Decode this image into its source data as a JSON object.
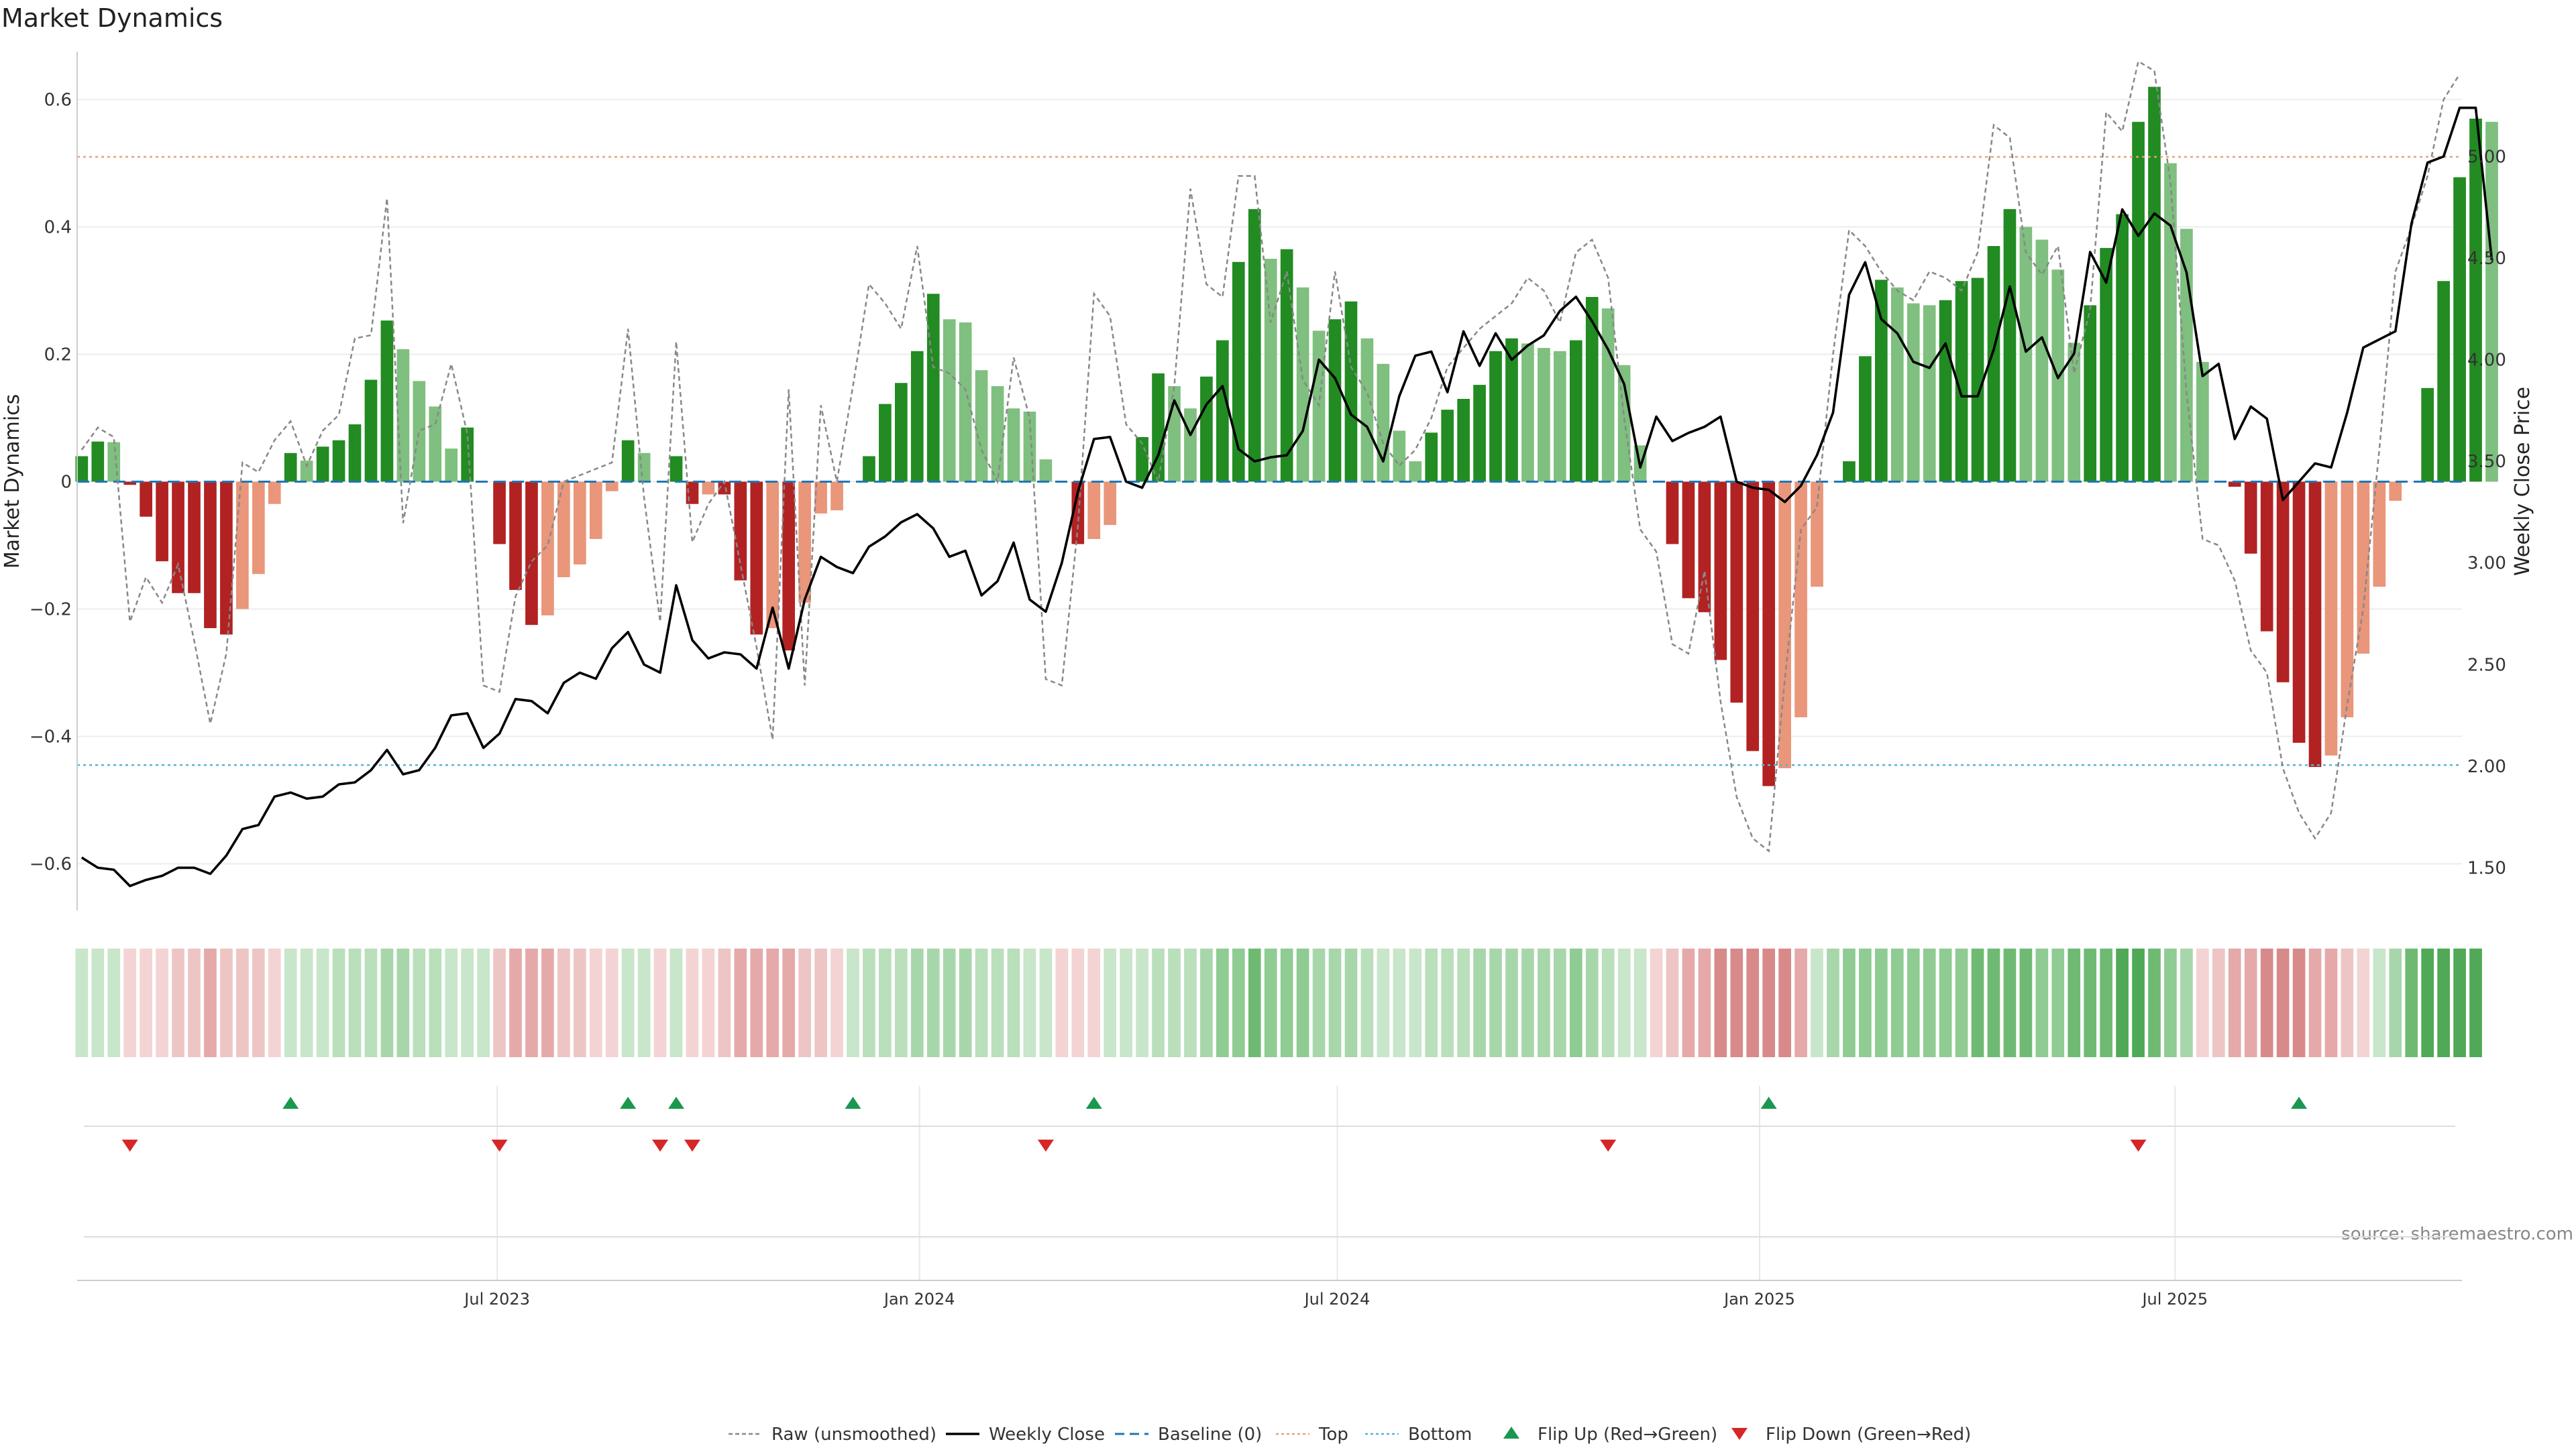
{
  "chart_data": {
    "type": "bar",
    "title": "Market Dynamics",
    "ylabel": "Market Dynamics",
    "y2label": "Weekly Close Price",
    "ylim": [
      -0.67,
      0.67
    ],
    "y2lim": [
      1.3,
      5.5
    ],
    "yticks": [
      -0.6,
      -0.4,
      -0.2,
      0,
      0.2,
      0.4,
      0.6
    ],
    "ytick_labels": [
      "−0.6",
      "−0.4",
      "−0.2",
      "0",
      "0.2",
      "0.4",
      "0.6"
    ],
    "y2ticks": [
      1.5,
      2.0,
      2.5,
      3.0,
      3.5,
      4.0,
      4.5,
      5.0
    ],
    "y2tick_labels": [
      "1.50",
      "2.00",
      "2.50",
      "3.00",
      "3.50",
      "4.00",
      "4.50",
      "5.00"
    ],
    "start_date": "2023-01-01",
    "x_range": [
      "2022-12-30",
      "2025-11-03"
    ],
    "xticks": [
      {
        "date": "2023-07-01",
        "label": "Jul 2023"
      },
      {
        "date": "2024-01-01",
        "label": "Jan 2024"
      },
      {
        "date": "2024-07-01",
        "label": "Jul 2024"
      },
      {
        "date": "2025-01-01",
        "label": "Jan 2025"
      },
      {
        "date": "2025-07-01",
        "label": "Jul 2025"
      }
    ],
    "top_threshold": 0.51,
    "bottom_threshold": -0.445,
    "grid": true,
    "legend_placement": "bottom-center",
    "source": "source: sharemaestro.com",
    "colors": {
      "strong_green": "#228b22",
      "light_green": "#7fbf7f",
      "strong_red": "#b22222",
      "light_red": "#e9967a",
      "close": "#000000",
      "raw": "#888888",
      "baseline": "#1f77b4",
      "top": "#e8a17a",
      "bottom": "#5ab4d6",
      "flip_up": "#1a9850",
      "flip_down": "#d62728"
    },
    "series": [
      {
        "name": "Market Dynamics",
        "values": [
          0.04,
          0.063,
          0.062,
          -0.005,
          -0.055,
          -0.125,
          -0.175,
          -0.175,
          -0.23,
          -0.24,
          -0.2,
          -0.145,
          -0.035,
          0.045,
          0.033,
          0.055,
          0.065,
          0.09,
          0.16,
          0.253,
          0.208,
          0.158,
          0.118,
          0.052,
          0.085,
          0,
          -0.098,
          -0.17,
          -0.225,
          -0.21,
          -0.15,
          -0.13,
          -0.09,
          -0.015,
          0.065,
          0.045,
          0,
          0.04,
          -0.035,
          -0.02,
          -0.02,
          -0.155,
          -0.24,
          -0.23,
          -0.265,
          -0.19,
          -0.05,
          -0.045,
          0,
          0.04,
          0.122,
          0.155,
          0.205,
          0.295,
          0.255,
          0.25,
          0.175,
          0.15,
          0.115,
          0.11,
          0.035,
          0,
          -0.098,
          -0.09,
          -0.068,
          0,
          0.07,
          0.17,
          0.15,
          0.115,
          0.165,
          0.222,
          0.345,
          0.428,
          0.35,
          0.365,
          0.305,
          0.237,
          0.255,
          0.283,
          0.225,
          0.185,
          0.08,
          0.032,
          0.077,
          0.113,
          0.13,
          0.152,
          0.205,
          0.225,
          0.217,
          0.21,
          0.205,
          0.222,
          0.29,
          0.272,
          0.183,
          0.057,
          0,
          -0.098,
          -0.183,
          -0.205,
          -0.28,
          -0.347,
          -0.423,
          -0.478,
          -0.45,
          -0.37,
          -0.165,
          0,
          0.032,
          0.197,
          0.317,
          0.305,
          0.28,
          0.277,
          0.285,
          0.315,
          0.32,
          0.37,
          0.428,
          0.4,
          0.38,
          0.333,
          0.218,
          0.277,
          0.367,
          0.42,
          0.565,
          0.62,
          0.5,
          0.397,
          0.188,
          0,
          -0.008,
          -0.113,
          -0.235,
          -0.315,
          -0.41,
          -0.448,
          -0.43,
          -0.37,
          -0.27,
          -0.165,
          -0.03,
          0,
          0.147,
          0.315,
          0.478,
          0.57,
          0.565
        ]
      },
      {
        "name": "Raw (unsmoothed)",
        "values": [
          0.05,
          0.085,
          0.07,
          -0.22,
          -0.15,
          -0.19,
          -0.13,
          -0.25,
          -0.38,
          -0.27,
          0.03,
          0.015,
          0.065,
          0.095,
          0.025,
          0.08,
          0.105,
          0.225,
          0.23,
          0.445,
          -0.065,
          0.08,
          0.09,
          0.185,
          0.075,
          -0.32,
          -0.33,
          -0.18,
          -0.125,
          -0.1,
          0,
          0.01,
          0.02,
          0.03,
          0.24,
          -0.025,
          -0.22,
          0.22,
          -0.095,
          -0.035,
          0,
          -0.13,
          -0.26,
          -0.405,
          0.145,
          -0.32,
          0.12,
          0,
          0.15,
          0.31,
          0.28,
          0.24,
          0.37,
          0.18,
          0.17,
          0.145,
          0.05,
          0,
          0.195,
          0.1,
          -0.31,
          -0.32,
          -0.07,
          0.295,
          0.26,
          0.09,
          0.06,
          0,
          0.15,
          0.46,
          0.31,
          0.29,
          0.48,
          0.48,
          0.25,
          0.33,
          0.16,
          0.12,
          0.33,
          0.18,
          0.14,
          0.06,
          0.025,
          0.05,
          0.1,
          0.18,
          0.21,
          0.24,
          0.26,
          0.28,
          0.32,
          0.3,
          0.25,
          0.36,
          0.38,
          0.32,
          0.1,
          -0.075,
          -0.11,
          -0.255,
          -0.27,
          -0.14,
          -0.345,
          -0.495,
          -0.56,
          -0.58,
          -0.31,
          -0.075,
          -0.04,
          0.2,
          0.395,
          0.37,
          0.33,
          0.3,
          0.285,
          0.33,
          0.32,
          0.3,
          0.36,
          0.56,
          0.54,
          0.36,
          0.325,
          0.37,
          0.17,
          0.27,
          0.58,
          0.55,
          0.66,
          0.645,
          0.47,
          0.14,
          -0.09,
          -0.1,
          -0.155,
          -0.265,
          -0.3,
          -0.45,
          -0.52,
          -0.56,
          -0.52,
          -0.35,
          -0.2,
          0.05,
          0.33,
          0.4,
          0.48,
          0.6,
          0.64
        ]
      },
      {
        "name": "Weekly Close",
        "values": [
          1.55,
          1.5,
          1.49,
          1.41,
          1.44,
          1.46,
          1.5,
          1.5,
          1.47,
          1.56,
          1.69,
          1.71,
          1.85,
          1.87,
          1.84,
          1.85,
          1.91,
          1.92,
          1.98,
          2.08,
          1.96,
          1.98,
          2.09,
          2.25,
          2.26,
          2.09,
          2.16,
          2.33,
          2.32,
          2.26,
          2.41,
          2.46,
          2.43,
          2.58,
          2.66,
          2.5,
          2.46,
          2.89,
          2.62,
          2.53,
          2.56,
          2.55,
          2.48,
          2.78,
          2.48,
          2.82,
          3.03,
          2.98,
          2.95,
          3.08,
          3.13,
          3.2,
          3.24,
          3.17,
          3.03,
          3.06,
          2.84,
          2.91,
          3.1,
          2.82,
          2.76,
          3.0,
          3.35,
          3.61,
          3.62,
          3.4,
          3.37,
          3.53,
          3.8,
          3.63,
          3.78,
          3.87,
          3.56,
          3.5,
          3.52,
          3.53,
          3.65,
          4.0,
          3.91,
          3.73,
          3.67,
          3.5,
          3.82,
          4.02,
          4.04,
          3.84,
          4.14,
          3.97,
          4.13,
          4.0,
          4.07,
          4.12,
          4.24,
          4.31,
          4.19,
          4.05,
          3.88,
          3.47,
          3.72,
          3.6,
          3.64,
          3.67,
          3.72,
          3.4,
          3.37,
          3.36,
          3.3,
          3.38,
          3.53,
          3.74,
          4.32,
          4.48,
          4.2,
          4.13,
          3.99,
          3.96,
          4.08,
          3.82,
          3.82,
          4.05,
          4.36,
          4.04,
          4.11,
          3.91,
          4.03,
          4.53,
          4.38,
          4.74,
          4.61,
          4.72,
          4.66,
          4.43,
          3.92,
          3.98,
          3.61,
          3.77,
          3.71,
          3.31,
          3.4,
          3.49,
          3.47,
          3.74,
          4.06,
          4.1,
          4.14,
          4.67,
          4.97,
          5.0,
          5.24,
          5.24,
          4.49
        ]
      }
    ],
    "flip_up_weeks": [
      13,
      34,
      37,
      48,
      63,
      105,
      138
    ],
    "flip_down_weeks": [
      3,
      26,
      36,
      38,
      60,
      95,
      128
    ],
    "heat_strips": [
      "#c8e6c9",
      "#c8e6c9",
      "#c8e6c9",
      "#f3d3d3",
      "#f3d3d3",
      "#f3d3d3",
      "#eec5c5",
      "#eec5c5",
      "#e5a9a9",
      "#eec5c5",
      "#eec5c5",
      "#eec5c5",
      "#f3d3d3",
      "#c8e6c9",
      "#c8e6c9",
      "#c8e6c9",
      "#b9dfbb",
      "#b9dfbb",
      "#b9dfbb",
      "#a8d6ab",
      "#a8d6ab",
      "#b9dfbb",
      "#b9dfbb",
      "#c8e6c9",
      "#c8e6c9",
      "#c8e6c9",
      "#eec5c5",
      "#e5a9a9",
      "#e5a9a9",
      "#e5a9a9",
      "#eec5c5",
      "#eec5c5",
      "#f3d3d3",
      "#f3d3d3",
      "#c8e6c9",
      "#c8e6c9",
      "#f3d3d3",
      "#c8e6c9",
      "#f3d3d3",
      "#f3d3d3",
      "#eec5c5",
      "#e5a9a9",
      "#e5a9a9",
      "#e5a9a9",
      "#e5a9a9",
      "#eec5c5",
      "#eec5c5",
      "#f3d3d3",
      "#c8e6c9",
      "#b9dfbb",
      "#b9dfbb",
      "#b9dfbb",
      "#a8d6ab",
      "#a8d6ab",
      "#a8d6ab",
      "#a8d6ab",
      "#b9dfbb",
      "#b9dfbb",
      "#b9dfbb",
      "#c8e6c9",
      "#c8e6c9",
      "#f3d3d3",
      "#f3d3d3",
      "#f3d3d3",
      "#c8e6c9",
      "#c8e6c9",
      "#c8e6c9",
      "#b9dfbb",
      "#b9dfbb",
      "#b9dfbb",
      "#a8d6ab",
      "#8fcb92",
      "#8fcb92",
      "#6fba73",
      "#8fcb92",
      "#8fcb92",
      "#8fcb92",
      "#a8d6ab",
      "#a8d6ab",
      "#a8d6ab",
      "#b9dfbb",
      "#c8e6c9",
      "#c8e6c9",
      "#c8e6c9",
      "#b9dfbb",
      "#b9dfbb",
      "#b9dfbb",
      "#a8d6ab",
      "#a8d6ab",
      "#a8d6ab",
      "#a8d6ab",
      "#a8d6ab",
      "#a8d6ab",
      "#8fcb92",
      "#a8d6ab",
      "#b9dfbb",
      "#c8e6c9",
      "#c8e6c9",
      "#f3d3d3",
      "#eec5c5",
      "#e5a9a9",
      "#e5a9a9",
      "#d88a8a",
      "#d88a8a",
      "#d88a8a",
      "#d88a8a",
      "#d88a8a",
      "#e5a9a9",
      "#c8e6c9",
      "#a8d6ab",
      "#8fcb92",
      "#8fcb92",
      "#8fcb92",
      "#8fcb92",
      "#8fcb92",
      "#8fcb92",
      "#8fcb92",
      "#8fcb92",
      "#6fba73",
      "#6fba73",
      "#6fba73",
      "#6fba73",
      "#8fcb92",
      "#8fcb92",
      "#6fba73",
      "#6fba73",
      "#6fba73",
      "#4fa956",
      "#4fa956",
      "#6fba73",
      "#8fcb92",
      "#a8d6ab",
      "#f3d3d3",
      "#eec5c5",
      "#e5a9a9",
      "#e5a9a9",
      "#d88a8a",
      "#d88a8a",
      "#d88a8a",
      "#e5a9a9",
      "#e5a9a9",
      "#eec5c5",
      "#f3d3d3",
      "#c8e6c9",
      "#a8d6ab",
      "#6fba73",
      "#4fa956",
      "#4fa956",
      "#4fa956",
      "#4fa956"
    ],
    "legend": [
      {
        "key": "raw",
        "label": "Raw (unsmoothed)"
      },
      {
        "key": "close",
        "label": "Weekly Close"
      },
      {
        "key": "baseline",
        "label": "Baseline (0)"
      },
      {
        "key": "top",
        "label": "Top"
      },
      {
        "key": "bottom",
        "label": "Bottom"
      },
      {
        "key": "flip_up",
        "label": "Flip Up (Red→Green)"
      },
      {
        "key": "flip_down",
        "label": "Flip Down (Green→Red)"
      }
    ]
  }
}
